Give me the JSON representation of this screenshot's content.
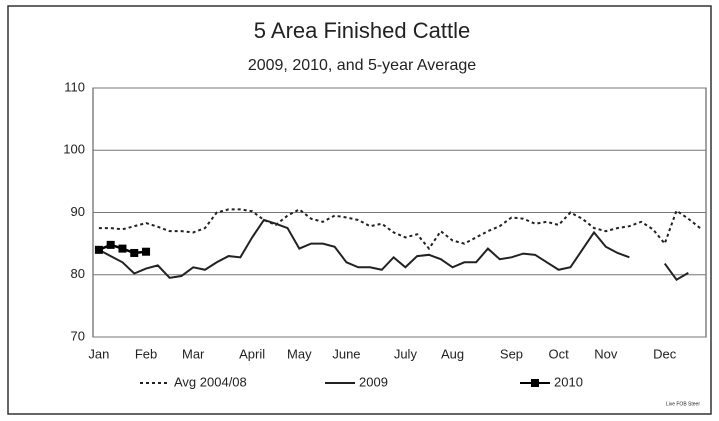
{
  "chart_data": {
    "type": "line",
    "title": "5 Area Finished Cattle",
    "subtitle": "2009, 2010, and 5-year Average",
    "source": "Live FOB Steer",
    "categories": [
      "Jan",
      null,
      null,
      null,
      "Feb",
      null,
      null,
      null,
      "Mar",
      null,
      null,
      null,
      null,
      "April",
      null,
      null,
      null,
      "May",
      null,
      null,
      null,
      "June",
      null,
      null,
      null,
      null,
      "July",
      null,
      null,
      null,
      "Aug",
      null,
      null,
      null,
      null,
      "Sep",
      null,
      null,
      null,
      "Oct",
      null,
      null,
      null,
      "Nov",
      null,
      null,
      null,
      null,
      "Dec",
      null,
      null,
      null
    ],
    "series": [
      {
        "name": "Avg 2004/08",
        "color": "#222222",
        "style": "dotted",
        "values": [
          87.5,
          87.5,
          87.3,
          87.8,
          88.3,
          87.7,
          87.0,
          87.0,
          86.8,
          87.5,
          90.0,
          90.5,
          90.5,
          90.2,
          88.8,
          88.0,
          89.5,
          90.5,
          89.0,
          88.5,
          89.5,
          89.2,
          88.8,
          87.8,
          88.2,
          86.8,
          86.0,
          86.5,
          84.2,
          87.0,
          85.5,
          85.0,
          86.0,
          87.0,
          87.8,
          89.2,
          89.0,
          88.2,
          88.5,
          88.0,
          90.0,
          89.0,
          87.5,
          87.0,
          87.5,
          87.8,
          88.5,
          87.3,
          85.0,
          90.3,
          89.0,
          87.5
        ]
      },
      {
        "name": "2009",
        "color": "#222222",
        "style": "solid",
        "values": [
          84.0,
          83.0,
          82.0,
          80.2,
          81.0,
          81.5,
          79.5,
          79.8,
          81.2,
          80.8,
          82.0,
          83.0,
          82.8,
          86.0,
          88.8,
          88.2,
          87.5,
          84.2,
          85.0,
          85.0,
          84.5,
          82.0,
          81.2,
          81.2,
          80.8,
          82.8,
          81.2,
          83.0,
          83.2,
          82.5,
          81.2,
          82.0,
          82.0,
          84.2,
          82.5,
          82.8,
          83.4,
          83.2,
          82.0,
          80.8,
          81.2,
          84.0,
          86.8,
          84.5,
          83.5,
          82.8,
          null,
          null,
          81.8,
          79.2,
          80.3,
          null
        ]
      },
      {
        "name": "2010",
        "color": "#000000",
        "style": "marker",
        "values": [
          84.0,
          84.8,
          84.2,
          83.5,
          83.7,
          null,
          null,
          null,
          null,
          null,
          null,
          null,
          null,
          null,
          null,
          null,
          null,
          null,
          null,
          null,
          null,
          null,
          null,
          null,
          null,
          null,
          null,
          null,
          null,
          null,
          null,
          null,
          null,
          null,
          null,
          null,
          null,
          null,
          null,
          null,
          null,
          null,
          null,
          null,
          null,
          null,
          null,
          null,
          null,
          null,
          null,
          null
        ]
      }
    ],
    "ylim": [
      70,
      110
    ],
    "yticks": [
      70,
      80,
      90,
      100,
      110
    ],
    "grid": true,
    "legend": "bottom"
  }
}
